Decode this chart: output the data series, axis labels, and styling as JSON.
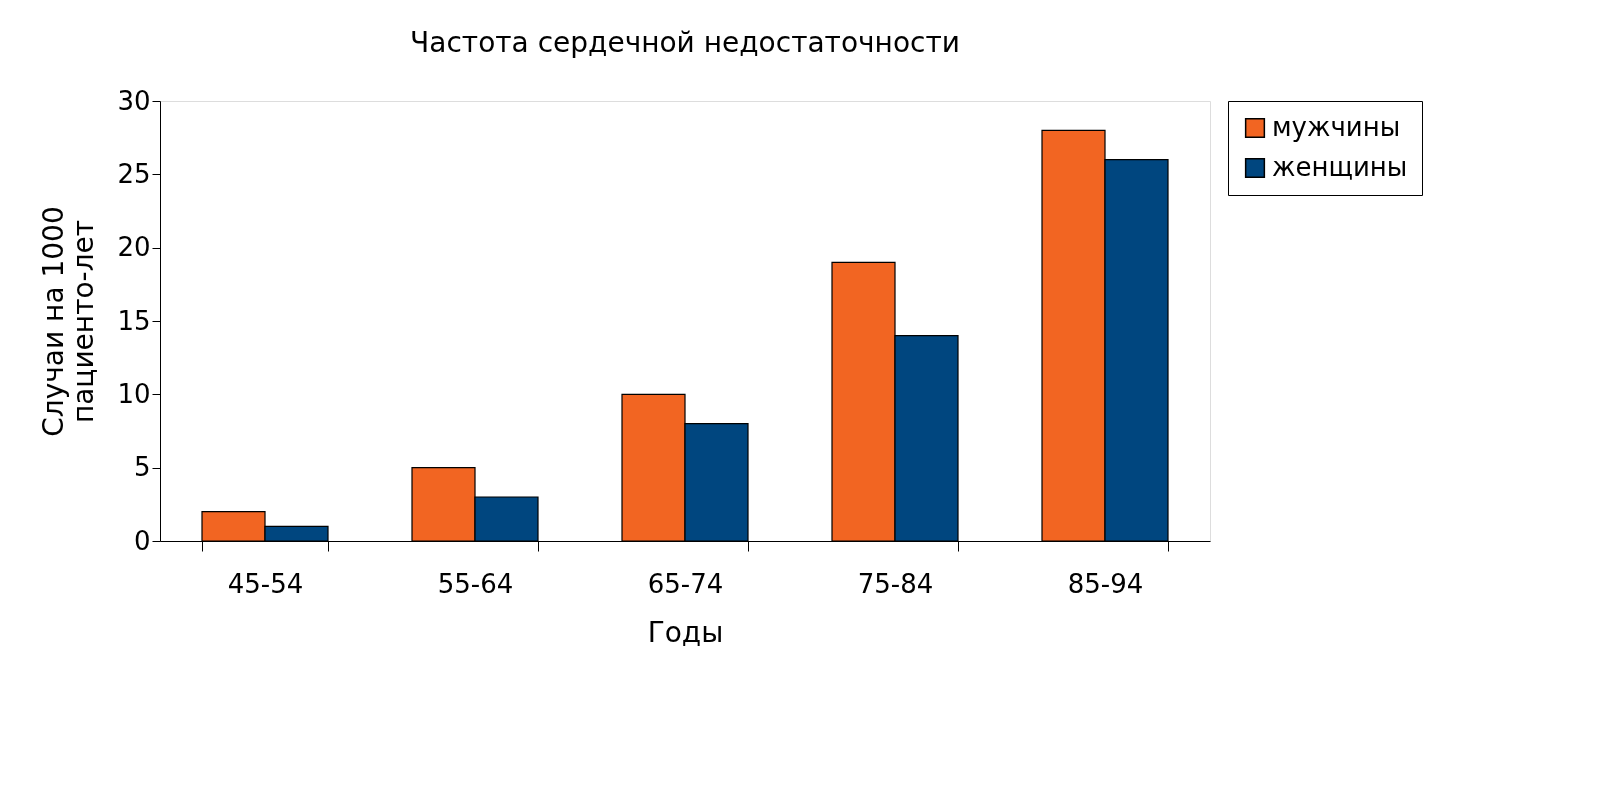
{
  "chart_data": {
    "type": "bar",
    "title": "Частота сердечной недостаточности",
    "xlabel": "Годы",
    "ylabel": "Случаи на 1000\nпациенто-лет",
    "categories": [
      "45-54",
      "55-64",
      "65-74",
      "75-84",
      "85-94"
    ],
    "series": [
      {
        "name": "мужчины",
        "color": "#f26522",
        "values": [
          2,
          5,
          10,
          19,
          28
        ]
      },
      {
        "name": "женщины",
        "color": "#00467f",
        "values": [
          1,
          3,
          8,
          14,
          26
        ]
      }
    ],
    "ylim": [
      0,
      30
    ],
    "yticks": [
      0,
      5,
      10,
      15,
      20,
      25,
      30
    ],
    "grid": false,
    "legend": "right"
  }
}
